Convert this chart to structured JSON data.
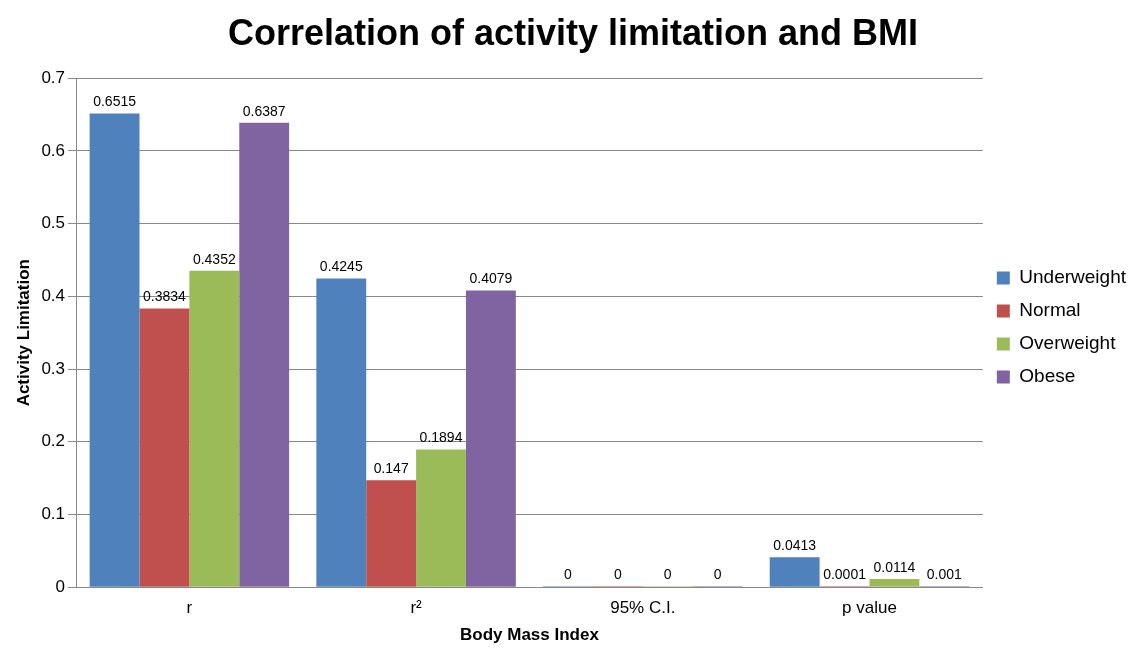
{
  "chart_data": {
    "type": "bar",
    "title": "Correlation of activity limitation and BMI",
    "xlabel": "Body Mass Index",
    "ylabel": "Activity Limitation",
    "categories": [
      "r",
      "r²",
      "95% C.I.",
      "p value"
    ],
    "series": [
      {
        "name": "Underweight",
        "color": "#4f81bd",
        "values": [
          0.6515,
          0.4245,
          0,
          0.0413
        ]
      },
      {
        "name": "Normal",
        "color": "#c0504d",
        "values": [
          0.3834,
          0.147,
          0,
          0.0001
        ]
      },
      {
        "name": "Overweight",
        "color": "#9bbb59",
        "values": [
          0.4352,
          0.1894,
          0,
          0.0114
        ]
      },
      {
        "name": "Obese",
        "color": "#8064a2",
        "values": [
          0.6387,
          0.4079,
          0,
          0.001
        ]
      }
    ],
    "ylim": [
      0,
      0.7
    ],
    "yticks": [
      0,
      0.1,
      0.2,
      0.3,
      0.4,
      0.5,
      0.6,
      0.7
    ],
    "grid": "y",
    "legend": "right",
    "data_labels": true
  }
}
